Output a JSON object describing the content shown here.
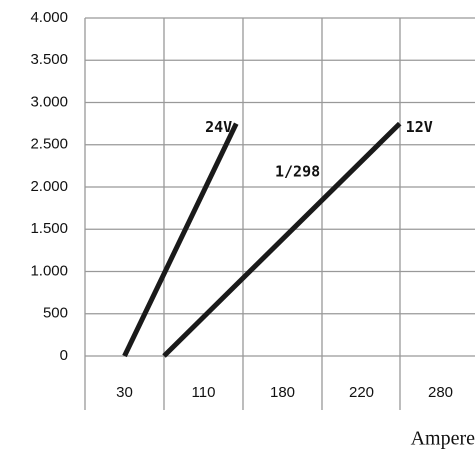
{
  "chart_data": {
    "type": "line",
    "xlabel": "Ampere",
    "annotations": [
      "1/298"
    ],
    "xticks": [
      30,
      110,
      180,
      220,
      280
    ],
    "ylim": [
      0,
      4000
    ],
    "yticks": [
      0,
      500,
      {
        "value": 1000,
        "label": "1.000"
      },
      {
        "value": 1500,
        "label": "1.500"
      },
      {
        "value": 2000,
        "label": "2.000"
      },
      {
        "value": 2500,
        "label": "2.500"
      },
      {
        "value": 3000,
        "label": "3.000"
      },
      {
        "value": 3500,
        "label": "3.500"
      },
      {
        "value": 4000,
        "label": "4.000"
      }
    ],
    "grid": true,
    "series": [
      {
        "name": "24V",
        "color": "#1a1a1a",
        "x": [
          30,
          139
        ],
        "values": [
          0,
          2750
        ]
      },
      {
        "name": "12V",
        "color": "#1a1a1a",
        "x": [
          70,
          249
        ],
        "values": [
          0,
          2750
        ]
      }
    ]
  }
}
